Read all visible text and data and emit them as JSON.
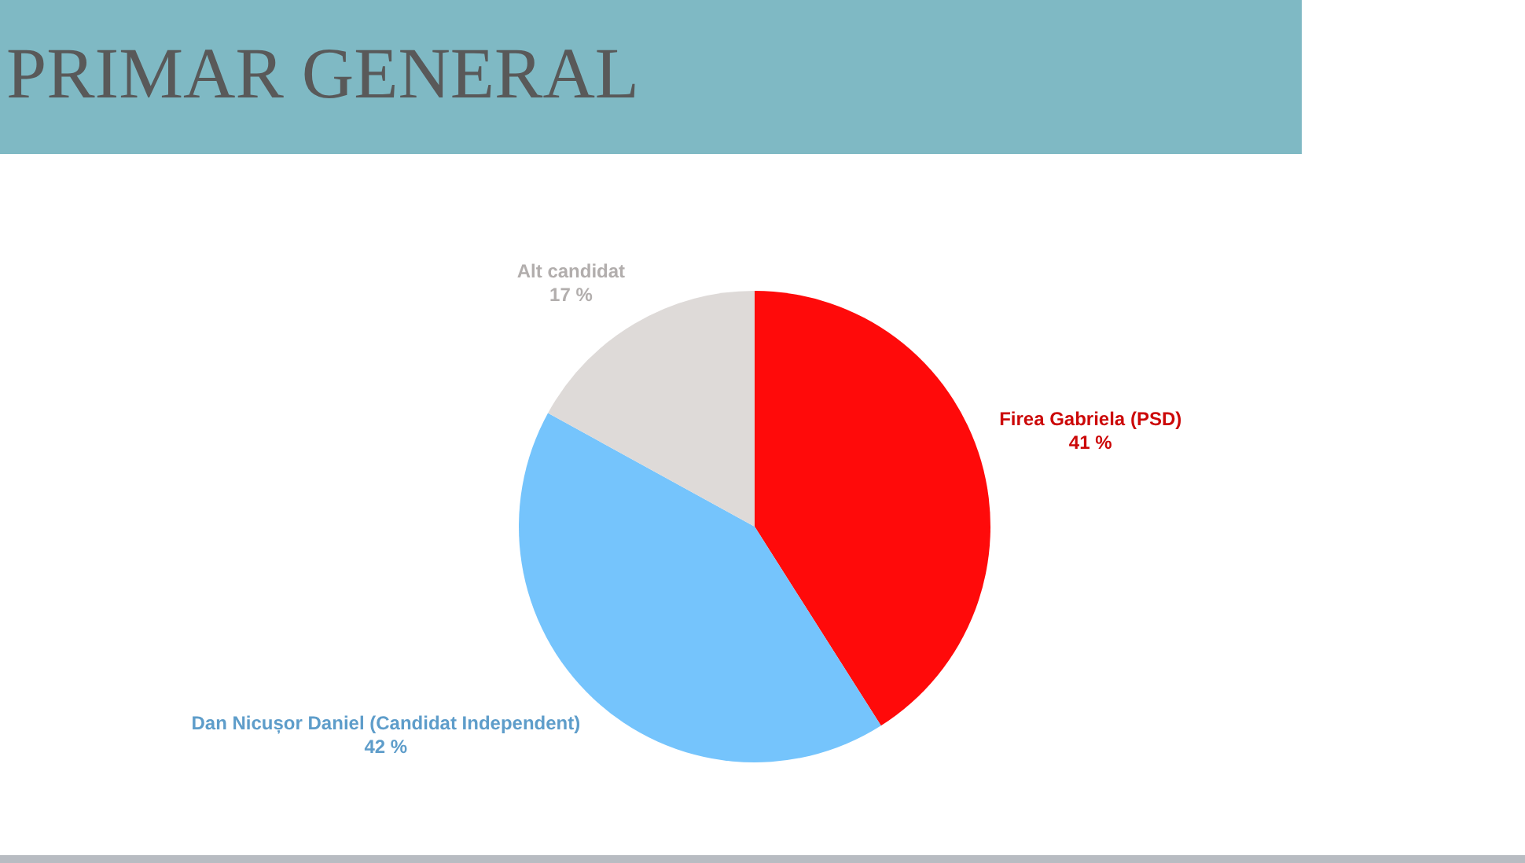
{
  "chart_data": {
    "type": "pie",
    "title": "PRIMAR GENERAL",
    "categories": [
      "Firea Gabriela (PSD)",
      "Dan Nicușor Daniel (Candidat Independent)",
      "Alt candidat"
    ],
    "values": [
      41,
      42,
      17
    ],
    "colors": [
      "#ff0a0a",
      "#75c4fc",
      "#dedad8"
    ],
    "value_labels": [
      "41 %",
      "42 %",
      "17 %"
    ]
  }
}
